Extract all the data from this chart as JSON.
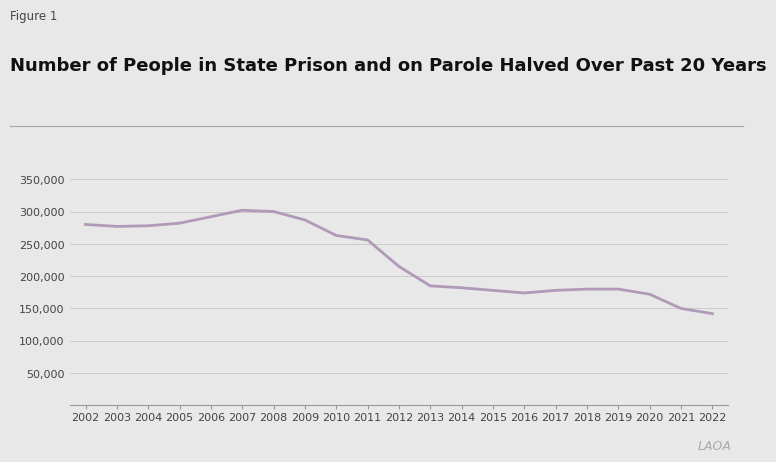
{
  "figure_label": "Figure 1",
  "title": "Number of People in State Prison and on Parole Halved Over Past 20 Years",
  "years": [
    2002,
    2003,
    2004,
    2005,
    2006,
    2007,
    2008,
    2009,
    2010,
    2011,
    2012,
    2013,
    2014,
    2015,
    2016,
    2017,
    2018,
    2019,
    2020,
    2021,
    2022
  ],
  "values": [
    280000,
    277000,
    278000,
    282000,
    292000,
    302000,
    300000,
    287000,
    263000,
    256000,
    215000,
    185000,
    182000,
    178000,
    174000,
    178000,
    180000,
    180000,
    172000,
    150000,
    142000
  ],
  "line_color": "#b09ab8",
  "line_width": 2.0,
  "bg_color": "#e8e8e8",
  "ylim": [
    0,
    375000
  ],
  "yticks": [
    50000,
    100000,
    150000,
    200000,
    250000,
    300000,
    350000
  ],
  "ytick_labels": [
    "50,000",
    "100,000",
    "150,000",
    "200,000",
    "250,000",
    "300,000",
    "350,000"
  ],
  "grid_color": "#cccccc",
  "text_color": "#444444",
  "title_fontsize": 13,
  "label_fontsize": 8,
  "figure_label_fontsize": 8.5,
  "watermark": "LAOA",
  "separator_color": "#aaaaaa",
  "spine_color": "#999999"
}
